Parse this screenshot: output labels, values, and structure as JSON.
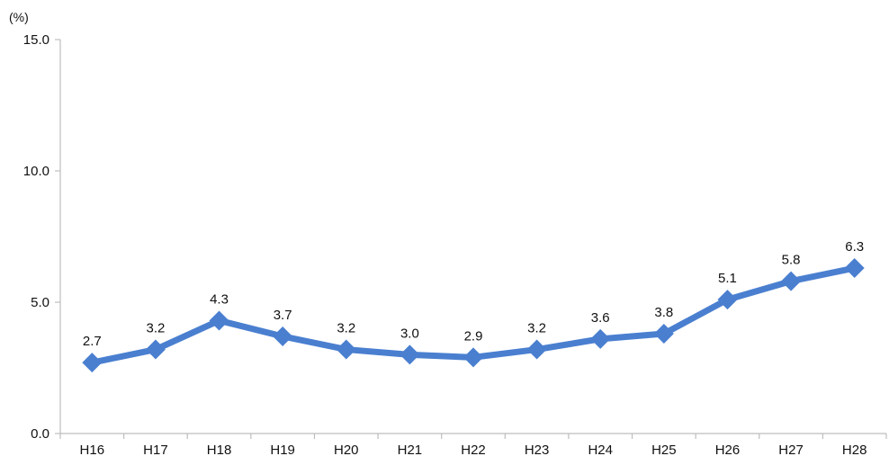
{
  "chart_data": {
    "type": "line",
    "title": "",
    "xlabel": "",
    "ylabel": "(%)",
    "categories": [
      "H16",
      "H17",
      "H18",
      "H19",
      "H20",
      "H21",
      "H22",
      "H23",
      "H24",
      "H25",
      "H26",
      "H27",
      "H28"
    ],
    "series": [
      {
        "values": [
          2.7,
          3.2,
          4.3,
          3.7,
          3.2,
          3.0,
          2.9,
          3.2,
          3.6,
          3.8,
          5.1,
          5.8,
          6.3
        ],
        "labels": [
          "2.7",
          "3.2",
          "4.3",
          "3.7",
          "3.2",
          "3.0",
          "2.9",
          "3.2",
          "3.6",
          "3.8",
          "5.1",
          "5.8",
          "6.3"
        ],
        "color": "#4a7fd0",
        "marker": "diamond"
      }
    ],
    "ylim": [
      0,
      15
    ],
    "yticks": [
      0,
      5,
      10,
      15
    ],
    "ytick_labels": [
      "0.0",
      "5.0",
      "10.0",
      "15.0"
    ],
    "grid": false,
    "legend": "none",
    "axis_color": "#bdbdbd"
  }
}
